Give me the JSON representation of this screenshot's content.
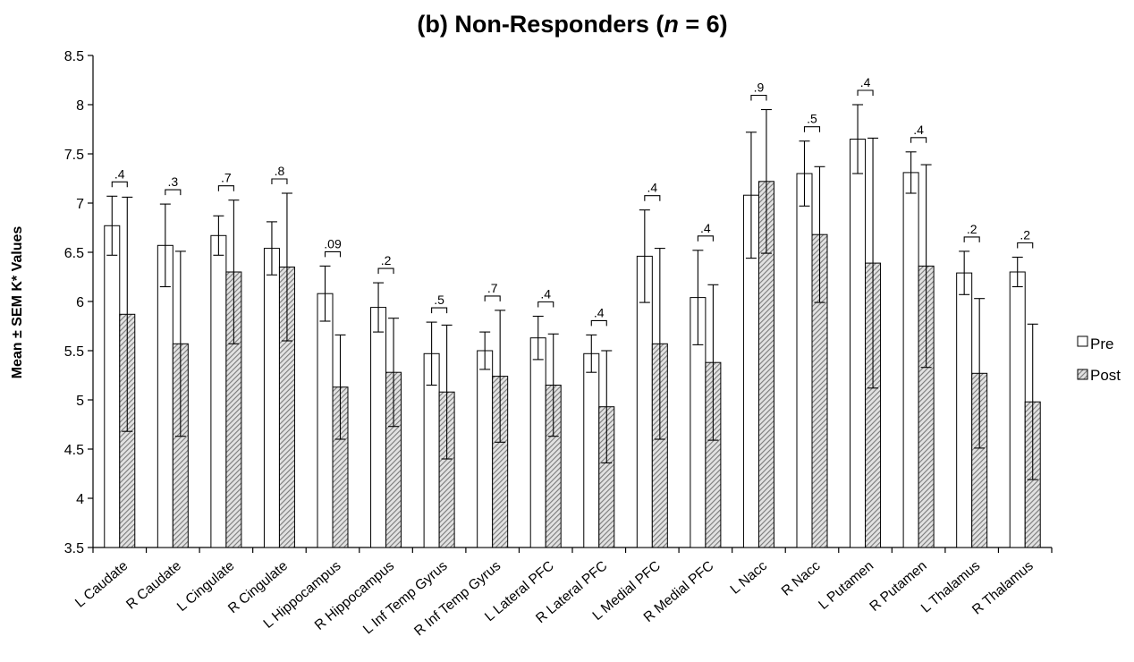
{
  "chart_data": {
    "type": "bar",
    "title_prefix": "(b) Non-Responders (",
    "title_italic": "n",
    "title_suffix": " = 6)",
    "xlabel": "",
    "ylabel": "Mean ± SEM K* Values",
    "ylim": [
      3.5,
      8.5
    ],
    "yticks": [
      "3.5",
      "4",
      "4.5",
      "5",
      "5.5",
      "6",
      "6.5",
      "7",
      "7.5",
      "8",
      "8.5"
    ],
    "grid": false,
    "legend_position": "right",
    "categories": [
      "L Caudate",
      "R Caudate",
      "L Cingulate",
      "R Cingulate",
      "L Hippocampus",
      "R Hippocampus",
      "L Inf Temp Gyrus",
      "R Inf Temp Gyrus",
      "L Lateral PFC",
      "R Lateral PFC",
      "L Medial PFC",
      "R Medial PFC",
      "L Nacc",
      "R Nacc",
      "L Putamen",
      "R Putamen",
      "L Thalamus",
      "R Thalamus"
    ],
    "series": [
      {
        "name": "Pre",
        "fill": "#ffffff",
        "values": [
          6.77,
          6.57,
          6.67,
          6.54,
          6.08,
          5.94,
          5.47,
          5.5,
          5.63,
          5.47,
          6.46,
          6.04,
          7.08,
          7.3,
          7.65,
          7.31,
          6.29,
          6.3
        ],
        "sem": [
          0.3,
          0.42,
          0.2,
          0.27,
          0.28,
          0.25,
          0.32,
          0.19,
          0.22,
          0.19,
          0.47,
          0.48,
          0.64,
          0.33,
          0.35,
          0.21,
          0.22,
          0.15
        ]
      },
      {
        "name": "Post",
        "fill": "hatched",
        "values": [
          5.87,
          5.57,
          6.3,
          6.35,
          5.13,
          5.28,
          5.08,
          5.24,
          5.15,
          4.93,
          5.57,
          5.38,
          7.22,
          6.68,
          6.39,
          6.36,
          5.27,
          4.98
        ],
        "sem": [
          1.19,
          0.94,
          0.73,
          0.75,
          0.53,
          0.55,
          0.68,
          0.67,
          0.52,
          0.57,
          0.97,
          0.79,
          0.73,
          0.69,
          1.27,
          1.03,
          0.76,
          0.79
        ]
      }
    ],
    "annotations": [
      ".4",
      ".3",
      ".7",
      ".8",
      ".09",
      ".2",
      ".5",
      ".7",
      ".4",
      ".4",
      ".4",
      ".4",
      ".9",
      ".5",
      ".4",
      ".4",
      ".2",
      ".2"
    ]
  }
}
